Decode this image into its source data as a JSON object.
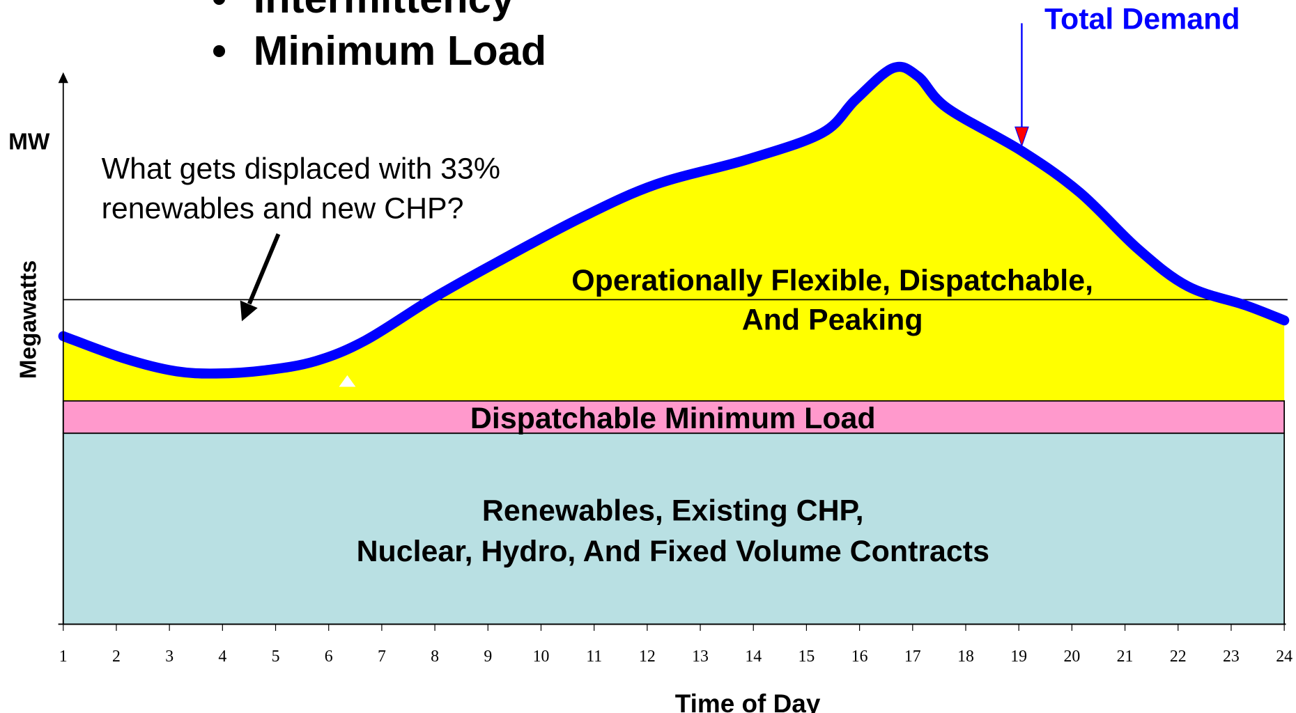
{
  "bullets": [
    "Intermittency",
    "Minimum Load"
  ],
  "y_axis": {
    "short_label": "MW",
    "label": "Megawatts"
  },
  "x_axis": {
    "label": "Time of Day",
    "ticks": [
      1,
      2,
      3,
      4,
      5,
      6,
      7,
      8,
      9,
      10,
      11,
      12,
      13,
      14,
      15,
      16,
      17,
      18,
      19,
      20,
      21,
      22,
      23,
      24
    ]
  },
  "curve_label": "Total Demand",
  "question": [
    "What gets displaced with 33%",
    "renewables and new CHP?"
  ],
  "bands": {
    "flexible": [
      "Operationally Flexible, Dispatchable,",
      "And Peaking"
    ],
    "minimum": "Dispatchable Minimum Load",
    "base": [
      "Renewables, Existing CHP,",
      "Nuclear, Hydro, And Fixed Volume Contracts"
    ]
  }
}
